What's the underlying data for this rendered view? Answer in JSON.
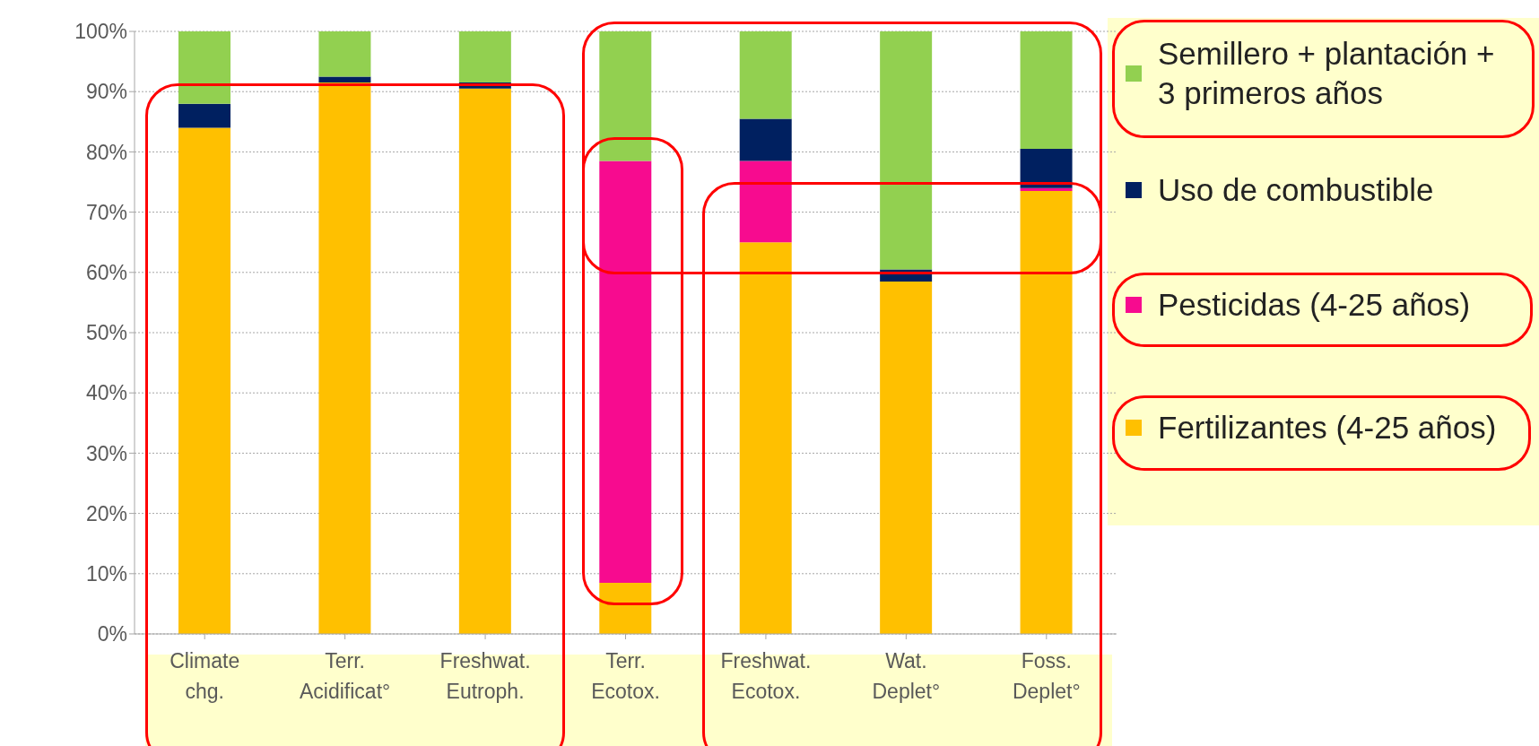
{
  "chart_data": {
    "type": "bar",
    "stacked": true,
    "categories": [
      "Climate\nchg.",
      "Terr.\nAcidificat°",
      "Freshwat.\nEutroph.",
      "Terr.\nEcotox.",
      "Freshwat.\nEcotox.",
      "Wat.\nDeplet°",
      "Foss.\nDeplet°"
    ],
    "series": [
      {
        "name": "Fertilizantes (4-25 años)",
        "color": "#ffc000",
        "values": [
          84,
          91.5,
          90.5,
          8.5,
          65,
          58.5,
          73.5
        ]
      },
      {
        "name": "Pesticidas (4-25 años)",
        "color": "#f70b8f",
        "values": [
          0,
          0,
          0,
          70,
          13.5,
          0,
          0.5
        ]
      },
      {
        "name": "Uso de combustible",
        "color": "#002060",
        "values": [
          4,
          1,
          1,
          0,
          7,
          2,
          6.5
        ]
      },
      {
        "name": "Semillero + plantación + 3 primeros años",
        "color": "#92d050",
        "values": [
          12,
          7.5,
          8.5,
          21.5,
          14.5,
          39.5,
          19.5
        ]
      }
    ],
    "ylim": [
      0,
      100
    ],
    "yticks": [
      {
        "value": 0,
        "label": "0%"
      },
      {
        "value": 10,
        "label": "10%"
      },
      {
        "value": 20,
        "label": "20%"
      },
      {
        "value": 30,
        "label": "30%"
      },
      {
        "value": 40,
        "label": "40%"
      },
      {
        "value": 50,
        "label": "50%"
      },
      {
        "value": 60,
        "label": "60%"
      },
      {
        "value": 70,
        "label": "70%"
      },
      {
        "value": 80,
        "label": "80%"
      },
      {
        "value": 90,
        "label": "90%"
      },
      {
        "value": 100,
        "label": "100%"
      }
    ],
    "grid": "y",
    "legend": "right"
  }
}
